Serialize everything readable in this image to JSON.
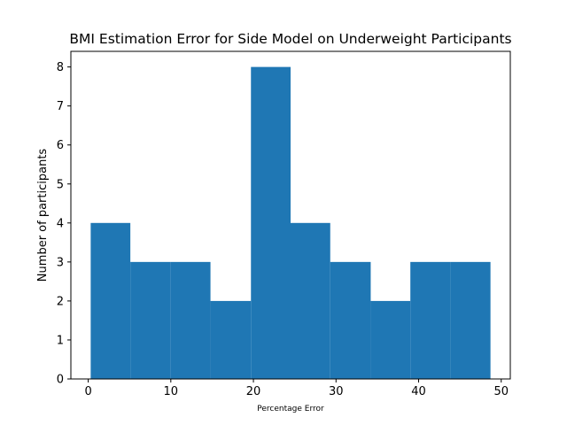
{
  "chart_data": {
    "type": "bar",
    "title": "BMI Estimation Error for Side Model on Underweight Participants",
    "xlabel": "Percentage Error",
    "ylabel": "Number of participants",
    "bin_edges": [
      0.3,
      5.1,
      10.0,
      14.8,
      19.7,
      24.5,
      29.3,
      34.2,
      39.0,
      43.9,
      48.7
    ],
    "values": [
      4,
      3,
      3,
      2,
      8,
      4,
      3,
      2,
      3,
      3
    ],
    "xlim": [
      -2.1,
      51.1
    ],
    "ylim": [
      0,
      8.4
    ],
    "xticks": [
      0,
      10,
      20,
      30,
      40,
      50
    ],
    "yticks": [
      0,
      1,
      2,
      3,
      4,
      5,
      6,
      7,
      8
    ],
    "bar_color": "#1f77b4",
    "grid": false,
    "legend": "none"
  }
}
